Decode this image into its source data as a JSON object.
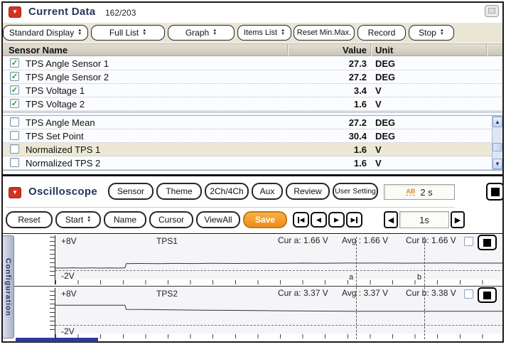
{
  "icons": {
    "panel_arrow": "▼",
    "spinner_up": "▲",
    "spinner_down": "▼",
    "check": "✓",
    "scroll_up": "▲",
    "scroll_down": "▼",
    "play_prev": "◀",
    "play_next": "▶",
    "nav_prev": "◀",
    "nav_next": "▶",
    "ab_icon": "AB"
  },
  "current_data": {
    "title": "Current Data",
    "counter": "162/203",
    "toolbar": {
      "display_mode": "Standard Display",
      "list_mode": "Full List",
      "view_mode": "Graph",
      "items_list": "Items List",
      "reset_minmax": "Reset Min.Max.",
      "record": "Record",
      "stop": "Stop"
    },
    "table": {
      "headers": {
        "name": "Sensor Name",
        "value": "Value",
        "unit": "Unit"
      },
      "selected_rows": [
        {
          "name": "TPS Angle Sensor 1",
          "value": "27.3",
          "unit": "DEG",
          "checked": true
        },
        {
          "name": "TPS Angle Sensor 2",
          "value": "27.2",
          "unit": "DEG",
          "checked": true
        },
        {
          "name": "TPS Voltage 1",
          "value": "3.4",
          "unit": "V",
          "checked": true
        },
        {
          "name": "TPS Voltage 2",
          "value": "1.6",
          "unit": "V",
          "checked": true
        }
      ],
      "unselected_rows": [
        {
          "name": "TPS Angle Mean",
          "value": "27.2",
          "unit": "DEG",
          "checked": false
        },
        {
          "name": "TPS Set Point",
          "value": "30.4",
          "unit": "DEG",
          "checked": false
        },
        {
          "name": "Normalized TPS 1",
          "value": "1.6",
          "unit": "V",
          "checked": false,
          "highlighted": true
        },
        {
          "name": "Normalized TPS 2",
          "value": "1.6",
          "unit": "V",
          "checked": false
        }
      ]
    }
  },
  "oscilloscope": {
    "title": "Oscilloscope",
    "buttons": {
      "sensor": "Sensor",
      "theme": "Theme",
      "ch_mode": "2Ch/4Ch",
      "aux": "Aux",
      "review": "Review",
      "user_setting": "User Setting",
      "reset": "Reset",
      "start": "Start",
      "name": "Name",
      "cursor": "Cursor",
      "view_all": "ViewAll",
      "save": "Save"
    },
    "time_per_screen": "2 s",
    "nav_time": "1s",
    "side_tab": "Configuration",
    "channels": [
      {
        "label": "TPS1",
        "top_scale": "+8V",
        "bottom_scale": "-2V",
        "cur_a": "Cur a: 1.66 V",
        "avg": "Avg : 1.66 V",
        "cur_b": "Cur b: 1.66 V",
        "cursor_a": "a",
        "cursor_b": "b",
        "waveform": [
          [
            0,
            0.52
          ],
          [
            0.02,
            0.5
          ],
          [
            0.04,
            0.56
          ],
          [
            0.06,
            0.5
          ],
          [
            0.08,
            0.55
          ],
          [
            0.1,
            0.5
          ],
          [
            0.12,
            0.54
          ],
          [
            0.14,
            0.5
          ],
          [
            0.155,
            0.53
          ],
          [
            0.158,
            1.55
          ],
          [
            0.19,
            1.58
          ],
          [
            0.23,
            1.55
          ],
          [
            0.27,
            1.6
          ],
          [
            0.31,
            1.56
          ],
          [
            0.35,
            1.62
          ],
          [
            0.4,
            1.58
          ],
          [
            0.45,
            1.64
          ],
          [
            0.5,
            1.6
          ],
          [
            0.55,
            1.66
          ],
          [
            0.6,
            1.62
          ],
          [
            0.65,
            1.68
          ],
          [
            0.669,
            1.66
          ],
          [
            0.72,
            1.68
          ],
          [
            0.78,
            1.65
          ],
          [
            0.821,
            1.66
          ],
          [
            0.87,
            1.68
          ],
          [
            0.93,
            1.66
          ],
          [
            1,
            1.67
          ]
        ]
      },
      {
        "label": "TPS2",
        "top_scale": "+8V",
        "bottom_scale": "-2V",
        "cur_a": "Cur a: 3.37 V",
        "avg": "Avg : 3.37 V",
        "cur_b": "Cur b: 3.38 V",
        "cursor_a": "a",
        "cursor_b": "b",
        "waveform": [
          [
            0,
            4.8
          ],
          [
            0.05,
            4.78
          ],
          [
            0.1,
            4.8
          ],
          [
            0.155,
            4.79
          ],
          [
            0.158,
            3.82
          ],
          [
            0.2,
            3.78
          ],
          [
            0.26,
            3.7
          ],
          [
            0.33,
            3.64
          ],
          [
            0.4,
            3.58
          ],
          [
            0.47,
            3.52
          ],
          [
            0.54,
            3.46
          ],
          [
            0.6,
            3.42
          ],
          [
            0.669,
            3.37
          ],
          [
            0.73,
            3.39
          ],
          [
            0.78,
            3.38
          ],
          [
            0.821,
            3.38
          ],
          [
            0.88,
            3.37
          ],
          [
            0.94,
            3.38
          ],
          [
            1,
            3.37
          ]
        ]
      }
    ]
  }
}
